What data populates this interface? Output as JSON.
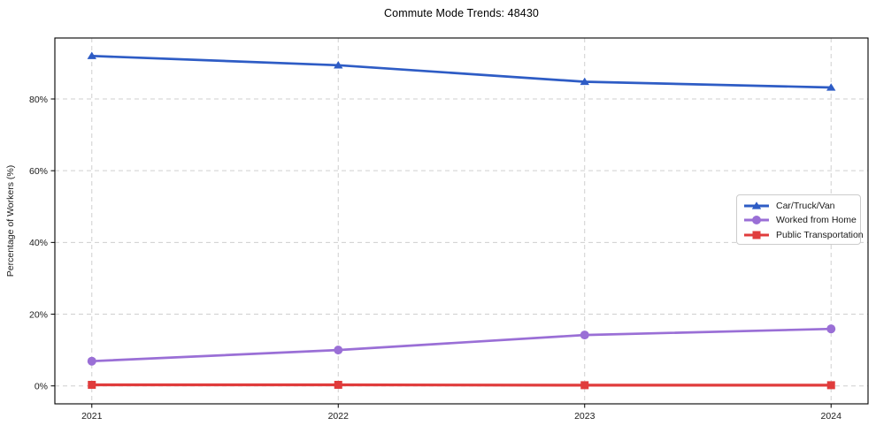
{
  "chart_data": {
    "type": "line",
    "title": "Commute Mode Trends: 48430",
    "ylabel": "Percentage of Workers (%)",
    "xlabel": "",
    "x": [
      2021,
      2022,
      2023,
      2024
    ],
    "xtick_labels": [
      "2021",
      "2022",
      "2023",
      "2024"
    ],
    "yticks": [
      0,
      20,
      40,
      60,
      80
    ],
    "ytick_labels": [
      "0%",
      "20%",
      "40%",
      "60%",
      "80%"
    ],
    "ylim": [
      -5,
      97
    ],
    "xlim": [
      2020.85,
      2024.15
    ],
    "grid": true,
    "grid_style": "dashed",
    "legend_position": "center-right",
    "colors": {
      "grid": "#cfcfcf",
      "axis": "#000000",
      "tick_label": "#1a1a1a"
    },
    "series": [
      {
        "name": "Car/Truck/Van",
        "color": "#2e5cc5",
        "marker": "triangle",
        "values": [
          92.0,
          89.4,
          84.8,
          83.2
        ]
      },
      {
        "name": "Worked from Home",
        "color": "#9a6fd6",
        "marker": "circle",
        "values": [
          6.9,
          10.0,
          14.2,
          15.9
        ]
      },
      {
        "name": "Public Transportation",
        "color": "#e03c3c",
        "marker": "square",
        "values": [
          0.3,
          0.3,
          0.2,
          0.2
        ]
      }
    ]
  }
}
